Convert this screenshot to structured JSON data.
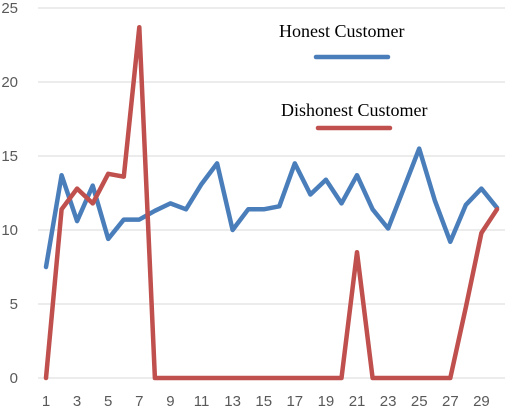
{
  "chart_data": {
    "type": "line",
    "title": "",
    "xlabel": "",
    "ylabel": "",
    "x": [
      1,
      2,
      3,
      4,
      5,
      6,
      7,
      8,
      9,
      10,
      11,
      12,
      13,
      14,
      15,
      16,
      17,
      18,
      19,
      20,
      21,
      22,
      23,
      24,
      25,
      26,
      27,
      28,
      29,
      30
    ],
    "x_tick_labels": [
      "1",
      "3",
      "5",
      "7",
      "9",
      "11",
      "13",
      "15",
      "17",
      "19",
      "21",
      "23",
      "25",
      "27",
      "29"
    ],
    "y_tick_labels": [
      "0",
      "5",
      "10",
      "15",
      "20",
      "25"
    ],
    "ylim": [
      0,
      25
    ],
    "grid": true,
    "legend_position": "inside, upper right",
    "series": [
      {
        "name": "Honest Customer",
        "color": "#4a7ebb",
        "values": [
          7.5,
          13.7,
          10.6,
          13.0,
          9.4,
          10.7,
          10.7,
          11.3,
          11.8,
          11.4,
          13.1,
          14.5,
          10.0,
          11.4,
          11.4,
          11.6,
          14.5,
          12.4,
          13.4,
          11.8,
          13.7,
          11.4,
          10.1,
          12.8,
          15.5,
          12.0,
          9.2,
          11.7,
          12.8,
          11.5
        ]
      },
      {
        "name": "Dishonest Customer",
        "color": "#c0504d",
        "values": [
          0.0,
          11.4,
          12.8,
          11.8,
          13.8,
          13.6,
          23.7,
          0.0,
          0.0,
          0.0,
          0.0,
          0.0,
          0.0,
          0.0,
          0.0,
          0.0,
          0.0,
          0.0,
          0.0,
          0.0,
          8.5,
          0.0,
          0.0,
          0.0,
          0.0,
          0.0,
          0.0,
          4.8,
          9.8,
          11.4
        ]
      }
    ]
  }
}
